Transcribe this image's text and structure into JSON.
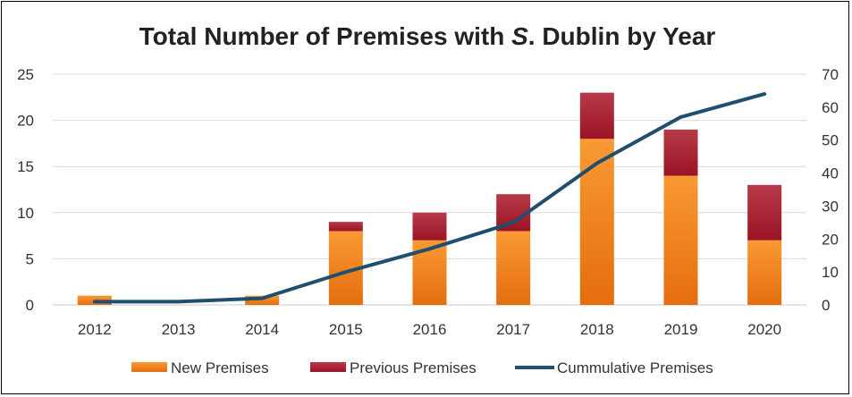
{
  "chart_data": {
    "type": "bar",
    "title_main": "Total Number of Premises with ",
    "title_italic": "S",
    "title_tail": ". Dublin by Year",
    "categories": [
      "2012",
      "2013",
      "2014",
      "2015",
      "2016",
      "2017",
      "2018",
      "2019",
      "2020"
    ],
    "series": [
      {
        "name": "New Premises",
        "type": "bar",
        "axis": "left",
        "color": "#f58a1f",
        "values": [
          1,
          0,
          1,
          8,
          7,
          8,
          18,
          14,
          7
        ]
      },
      {
        "name": "Previous Premises",
        "type": "bar",
        "axis": "left",
        "color": "#a51d2d",
        "values": [
          0,
          0,
          0,
          1,
          3,
          4,
          5,
          5,
          6
        ]
      },
      {
        "name": "Cummulative Premises",
        "type": "line",
        "axis": "right",
        "color": "#1f4e6e",
        "values": [
          1,
          1,
          2,
          10,
          17,
          25,
          43,
          57,
          64
        ]
      }
    ],
    "y_left": {
      "min": 0,
      "max": 25,
      "ticks": [
        "0",
        "5",
        "10",
        "15",
        "20",
        "25"
      ]
    },
    "y_right": {
      "min": 0,
      "max": 70,
      "ticks": [
        "0",
        "10",
        "20",
        "30",
        "40",
        "50",
        "60",
        "70"
      ]
    },
    "grid": true,
    "legend_position": "bottom",
    "stacked": true
  }
}
